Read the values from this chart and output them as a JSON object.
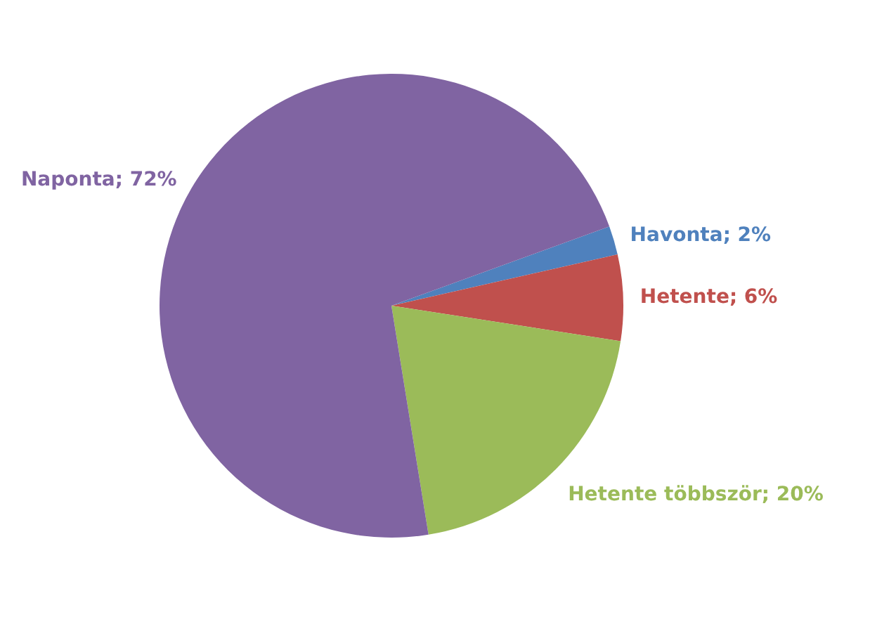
{
  "chart_data": {
    "type": "pie",
    "categories": [
      "Havonta",
      "Hetente",
      "Hetente többször",
      "Naponta"
    ],
    "values": [
      2,
      6,
      20,
      72
    ],
    "colors": [
      "#4f81bd",
      "#c0504d",
      "#9bbb59",
      "#8064a2"
    ],
    "value_labels": [
      "2%",
      "6%",
      "20%",
      "72%"
    ]
  }
}
